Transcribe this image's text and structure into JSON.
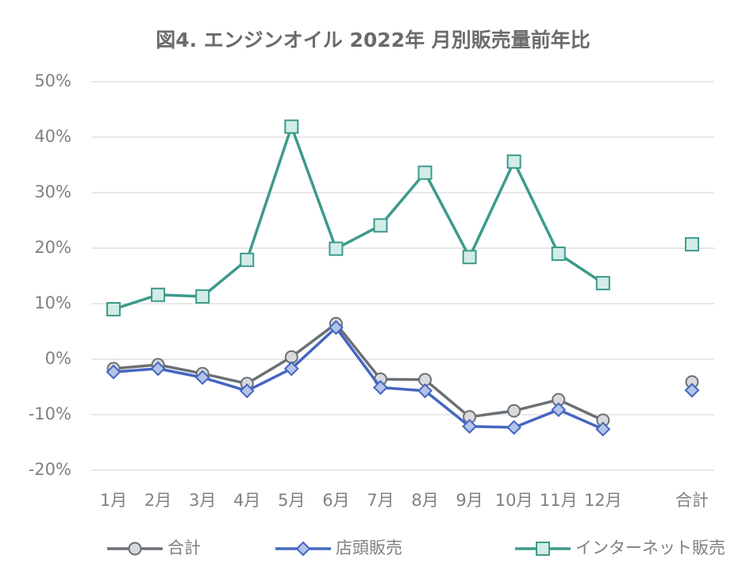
{
  "chart_data": {
    "type": "line",
    "title": "図4. エンジンオイル 2022年 月別販売量前年比",
    "categories": [
      "1月",
      "2月",
      "3月",
      "4月",
      "5月",
      "6月",
      "7月",
      "8月",
      "9月",
      "10月",
      "11月",
      "12月",
      null,
      "合計"
    ],
    "series": [
      {
        "name": "合計",
        "color": "#6b7075",
        "marker": "circle",
        "marker_fill": "#d9dadc",
        "values": [
          -1.7,
          -1.0,
          -2.6,
          -4.4,
          0.4,
          6.4,
          -3.6,
          -3.7,
          -10.4,
          -9.3,
          -7.3,
          -11.0,
          null,
          -4.1
        ]
      },
      {
        "name": "店頭販売",
        "color": "#4466c0",
        "marker": "diamond",
        "marker_fill": "#b4c3ea",
        "values": [
          -2.3,
          -1.7,
          -3.3,
          -5.7,
          -1.7,
          5.7,
          -5.1,
          -5.7,
          -12.1,
          -12.3,
          -9.1,
          -12.6,
          null,
          -5.6
        ]
      },
      {
        "name": "インターネット販売",
        "color": "#3d9a8a",
        "marker": "square",
        "marker_fill": "#d2ede8",
        "values": [
          9.0,
          11.6,
          11.3,
          17.9,
          41.9,
          19.9,
          24.1,
          33.6,
          18.4,
          35.6,
          19.0,
          13.7,
          null,
          20.7
        ]
      }
    ],
    "ylim": [
      -20,
      50
    ],
    "yticks": [
      {
        "value": -20,
        "label": "-20%"
      },
      {
        "value": -10,
        "label": "-10%"
      },
      {
        "value": 0,
        "label": "0%"
      },
      {
        "value": 10,
        "label": "10%"
      },
      {
        "value": 20,
        "label": "20%"
      },
      {
        "value": 30,
        "label": "30%"
      },
      {
        "value": 40,
        "label": "40%"
      },
      {
        "value": 50,
        "label": "50%"
      }
    ],
    "grid": true,
    "legend": "bottom"
  }
}
